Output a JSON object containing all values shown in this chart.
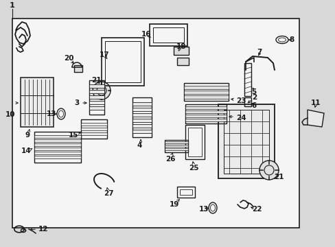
{
  "bg_color": "#d8d8d8",
  "box_color": "#f5f5f5",
  "line_color": "#1a1a1a",
  "fig_w": 4.89,
  "fig_h": 3.6,
  "dpi": 100,
  "labels": {
    "1": [
      18,
      352,
      18,
      340
    ],
    "2": [
      371,
      193,
      360,
      200
    ],
    "3": [
      113,
      210,
      128,
      210
    ],
    "4": [
      197,
      148,
      205,
      162
    ],
    "5": [
      367,
      223,
      355,
      228
    ],
    "6": [
      360,
      206,
      349,
      210
    ],
    "7": [
      380,
      255,
      368,
      248
    ],
    "8": [
      419,
      288,
      410,
      284
    ],
    "9": [
      40,
      165,
      42,
      176
    ],
    "10": [
      15,
      193,
      28,
      193
    ],
    "11": [
      460,
      196,
      460,
      196
    ],
    "12": [
      68,
      25,
      55,
      30
    ],
    "13a": [
      79,
      196,
      88,
      196
    ],
    "13b": [
      298,
      55,
      308,
      60
    ],
    "14": [
      40,
      140,
      54,
      140
    ],
    "15": [
      107,
      160,
      120,
      164
    ],
    "16": [
      215,
      308,
      228,
      304
    ],
    "17": [
      155,
      275,
      163,
      268
    ],
    "18": [
      260,
      283,
      252,
      274
    ],
    "19": [
      256,
      72,
      265,
      78
    ],
    "20": [
      105,
      274,
      114,
      265
    ],
    "21a": [
      148,
      230,
      154,
      220
    ],
    "21b": [
      397,
      153,
      388,
      158
    ],
    "22": [
      365,
      58,
      355,
      65
    ],
    "23": [
      341,
      212,
      330,
      212
    ],
    "24": [
      340,
      190,
      328,
      190
    ],
    "25": [
      292,
      140,
      294,
      150
    ],
    "26": [
      252,
      140,
      255,
      150
    ],
    "27": [
      158,
      88,
      157,
      100
    ]
  }
}
